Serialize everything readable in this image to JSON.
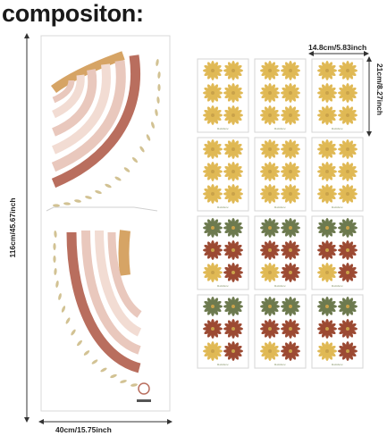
{
  "title": "compositon:",
  "dimensions": {
    "height": "116cm/45.67inch",
    "width": "40cm/15.75inch",
    "sheet_width": "14.8cm/5.83inch",
    "sheet_height": "21cm/8.27inch"
  },
  "brand_label": "Rainbow",
  "colors": {
    "terracotta": "#b96e5e",
    "pink": "#e9c8bd",
    "light_pink": "#f2dcd3",
    "ochre": "#d6a465",
    "mustard": "#e0b955",
    "olive": "#6d7a4f",
    "rust": "#9c4a33",
    "sand": "#d2c293"
  }
}
